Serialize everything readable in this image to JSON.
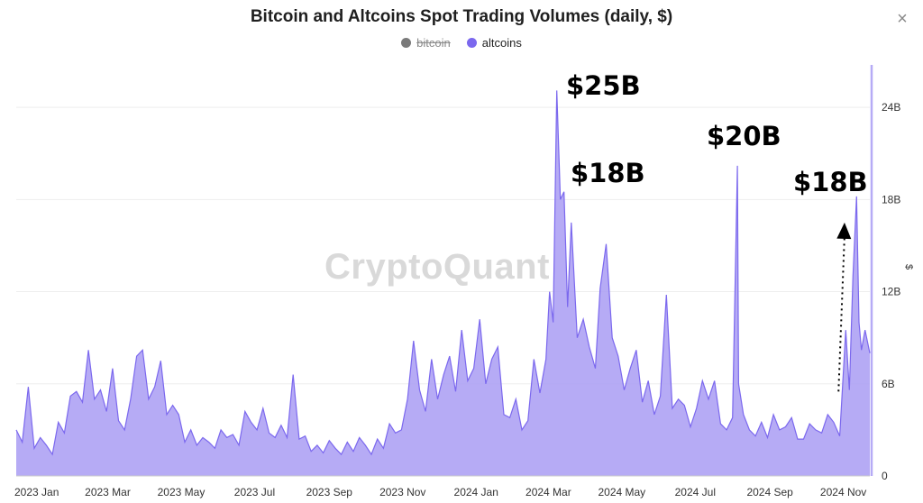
{
  "chart_data": {
    "type": "area",
    "title": "Bitcoin and Altcoins Spot Trading Volumes (daily, $)",
    "xlabel": "",
    "ylabel": "$",
    "y_unit": "$",
    "ylim": [
      0,
      27
    ],
    "y_ticks": [
      {
        "value": 0,
        "label": "0"
      },
      {
        "value": 6,
        "label": "6B"
      },
      {
        "value": 12,
        "label": "12B"
      },
      {
        "value": 18,
        "label": "18B"
      },
      {
        "value": 24,
        "label": "24B"
      }
    ],
    "x_tick_labels": [
      "2023 Jan",
      "2023 Mar",
      "2023 May",
      "2023 Jul",
      "2023 Sep",
      "2023 Nov",
      "2024 Jan",
      "2024 Mar",
      "2024 May",
      "2024 Jul",
      "2024 Sep",
      "2024 Nov"
    ],
    "grid": true,
    "legend_position": "top-center",
    "legend": [
      {
        "name": "bitcoin",
        "color": "#7a7a7a",
        "hidden": true
      },
      {
        "name": "altcoins",
        "color": "#7b68ee",
        "hidden": false
      }
    ],
    "series": [
      {
        "name": "altcoins",
        "color": "#7b68ee",
        "x": [
          "2022-12-15",
          "2022-12-20",
          "2022-12-25",
          "2022-12-30",
          "2023-01-04",
          "2023-01-09",
          "2023-01-14",
          "2023-01-19",
          "2023-01-24",
          "2023-01-29",
          "2023-02-03",
          "2023-02-08",
          "2023-02-13",
          "2023-02-18",
          "2023-02-23",
          "2023-02-28",
          "2023-03-05",
          "2023-03-10",
          "2023-03-15",
          "2023-03-20",
          "2023-03-25",
          "2023-03-30",
          "2023-04-04",
          "2023-04-09",
          "2023-04-14",
          "2023-04-19",
          "2023-04-24",
          "2023-04-29",
          "2023-05-04",
          "2023-05-09",
          "2023-05-14",
          "2023-05-19",
          "2023-05-24",
          "2023-05-29",
          "2023-06-03",
          "2023-06-08",
          "2023-06-13",
          "2023-06-18",
          "2023-06-23",
          "2023-06-28",
          "2023-07-03",
          "2023-07-08",
          "2023-07-13",
          "2023-07-18",
          "2023-07-23",
          "2023-07-28",
          "2023-08-02",
          "2023-08-07",
          "2023-08-12",
          "2023-08-17",
          "2023-08-22",
          "2023-08-27",
          "2023-09-01",
          "2023-09-06",
          "2023-09-11",
          "2023-09-16",
          "2023-09-21",
          "2023-09-26",
          "2023-10-01",
          "2023-10-06",
          "2023-10-11",
          "2023-10-16",
          "2023-10-21",
          "2023-10-26",
          "2023-10-31",
          "2023-11-05",
          "2023-11-10",
          "2023-11-15",
          "2023-11-20",
          "2023-11-25",
          "2023-11-30",
          "2023-12-05",
          "2023-12-10",
          "2023-12-15",
          "2023-12-20",
          "2023-12-25",
          "2023-12-30",
          "2024-01-04",
          "2024-01-09",
          "2024-01-14",
          "2024-01-19",
          "2024-01-24",
          "2024-01-29",
          "2024-02-03",
          "2024-02-08",
          "2024-02-13",
          "2024-02-18",
          "2024-02-23",
          "2024-02-28",
          "2024-03-02",
          "2024-03-05",
          "2024-03-08",
          "2024-03-11",
          "2024-03-14",
          "2024-03-17",
          "2024-03-20",
          "2024-03-25",
          "2024-03-30",
          "2024-04-04",
          "2024-04-09",
          "2024-04-13",
          "2024-04-18",
          "2024-04-23",
          "2024-04-28",
          "2024-05-03",
          "2024-05-08",
          "2024-05-13",
          "2024-05-18",
          "2024-05-23",
          "2024-05-28",
          "2024-06-02",
          "2024-06-07",
          "2024-06-12",
          "2024-06-17",
          "2024-06-22",
          "2024-06-27",
          "2024-07-02",
          "2024-07-07",
          "2024-07-12",
          "2024-07-17",
          "2024-07-22",
          "2024-07-27",
          "2024-08-01",
          "2024-08-05",
          "2024-08-06",
          "2024-08-10",
          "2024-08-15",
          "2024-08-20",
          "2024-08-25",
          "2024-08-30",
          "2024-09-04",
          "2024-09-09",
          "2024-09-14",
          "2024-09-19",
          "2024-09-24",
          "2024-09-29",
          "2024-10-04",
          "2024-10-09",
          "2024-10-14",
          "2024-10-19",
          "2024-10-24",
          "2024-10-29",
          "2024-11-03",
          "2024-11-06",
          "2024-11-09",
          "2024-11-12",
          "2024-11-14",
          "2024-11-16",
          "2024-11-19",
          "2024-11-23"
        ],
        "values": [
          3,
          2.2,
          5.8,
          1.8,
          2.5,
          2,
          1.4,
          3.5,
          2.8,
          5.2,
          5.5,
          4.8,
          8.2,
          5,
          5.6,
          4.2,
          7,
          3.6,
          3,
          5,
          7.8,
          8.2,
          5,
          5.8,
          7.5,
          4,
          4.6,
          4,
          2.2,
          3,
          2,
          2.5,
          2.2,
          1.8,
          3,
          2.5,
          2.7,
          2,
          4.2,
          3.5,
          3,
          4.4,
          2.8,
          2.5,
          3.3,
          2.5,
          6.6,
          2.4,
          2.6,
          1.6,
          2,
          1.5,
          2.3,
          1.8,
          1.4,
          2.2,
          1.6,
          2.5,
          2,
          1.4,
          2.4,
          1.8,
          3.4,
          2.8,
          3,
          5,
          8.8,
          5.6,
          4.2,
          7.6,
          5,
          6.6,
          7.8,
          5.5,
          9.5,
          6.2,
          7,
          10.2,
          6,
          7.6,
          8.4,
          4,
          3.8,
          5,
          3,
          3.6,
          7.6,
          5.4,
          7.6,
          12,
          10,
          25.1,
          18,
          18.5,
          11,
          16.5,
          9,
          10.2,
          8.4,
          7,
          12.2,
          15.1,
          9,
          7.8,
          5.6,
          7,
          8.2,
          4.8,
          6.2,
          4,
          5.2,
          11.8,
          4.4,
          5,
          4.6,
          3.2,
          4.4,
          6.2,
          5,
          6.2,
          3.4,
          3,
          3.8,
          20.2,
          6,
          4,
          3,
          2.6,
          3.5,
          2.5,
          4,
          3,
          3.2,
          3.8,
          2.4,
          2.4,
          3.4,
          3,
          2.8,
          4,
          3.5,
          2.6,
          9.5,
          5.6,
          13,
          18.2,
          10,
          8.2,
          9.5,
          8
        ]
      },
      {
        "name": "bitcoin",
        "hidden": true,
        "values": []
      }
    ],
    "annotations": [
      {
        "text": "$25B",
        "x": "2024-03-05",
        "y": 25.1
      },
      {
        "text": "$18B",
        "x": "2024-03-11",
        "y": 18
      },
      {
        "text": "$20B",
        "x": "2024-08-05",
        "y": 20.2
      },
      {
        "text": "$18B",
        "x": "2024-11-12",
        "y": 18.2
      }
    ],
    "arrow": {
      "from": {
        "x": "2024-10-28",
        "y": 5.5
      },
      "to": {
        "x": "2024-11-02",
        "y": 16.5
      },
      "style": "dotted"
    }
  },
  "watermark": "CryptoQuant",
  "ui": {
    "close_glyph": "×",
    "close_icon": "close-icon"
  }
}
